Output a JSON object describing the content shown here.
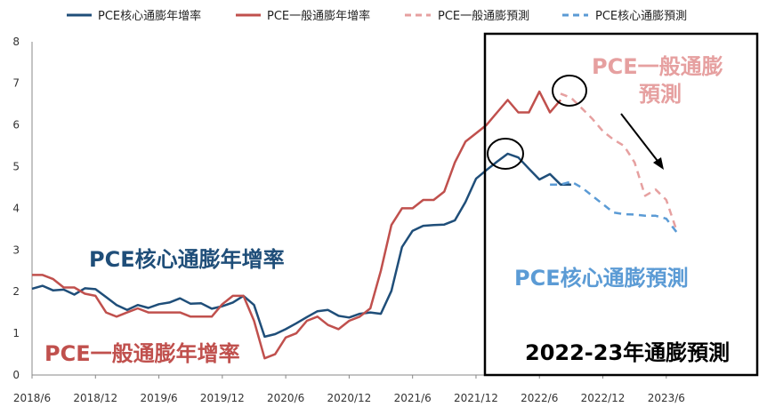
{
  "chart_data": {
    "type": "line",
    "ylim": [
      0,
      8
    ],
    "yticks": [
      "0",
      "1",
      "2",
      "3",
      "4",
      "5",
      "6",
      "7",
      "8"
    ],
    "xticks": [
      "2018/6",
      "2018/12",
      "2019/6",
      "2019/12",
      "2020/6",
      "2020/12",
      "2021/6",
      "2021/12",
      "2022/6",
      "2022/12",
      "2023/6"
    ],
    "legend_position": "top",
    "grid": false,
    "x_start": "2018/6",
    "series": [
      {
        "name": "PCE核心通膨年增率",
        "color": "#1f4e79",
        "style": "solid",
        "start": "2018/6",
        "values": [
          2.07,
          2.14,
          2.03,
          2.05,
          1.93,
          2.08,
          2.06,
          1.87,
          1.68,
          1.56,
          1.68,
          1.61,
          1.7,
          1.74,
          1.84,
          1.71,
          1.72,
          1.59,
          1.65,
          1.74,
          1.9,
          1.68,
          0.92,
          0.98,
          1.1,
          1.24,
          1.39,
          1.53,
          1.56,
          1.42,
          1.38,
          1.47,
          1.5,
          1.47,
          2.02,
          3.07,
          3.46,
          3.58,
          3.6,
          3.61,
          3.71,
          4.15,
          4.71,
          4.92,
          5.12,
          5.31,
          5.22,
          4.95,
          4.69,
          4.82,
          4.57,
          4.57
        ]
      },
      {
        "name": "PCE一般通膨年增率",
        "color": "#c0504d",
        "style": "solid",
        "start": "2018/6",
        "values": [
          2.4,
          2.4,
          2.3,
          2.1,
          2.1,
          1.95,
          1.9,
          1.5,
          1.4,
          1.5,
          1.6,
          1.5,
          1.5,
          1.5,
          1.5,
          1.4,
          1.4,
          1.4,
          1.7,
          1.9,
          1.9,
          1.3,
          0.4,
          0.5,
          0.9,
          1.0,
          1.3,
          1.4,
          1.2,
          1.1,
          1.3,
          1.4,
          1.6,
          2.5,
          3.6,
          4.0,
          4.0,
          4.2,
          4.2,
          4.4,
          5.1,
          5.6,
          5.8,
          6.0,
          6.3,
          6.6,
          6.3,
          6.3,
          6.8,
          6.3,
          6.6
        ]
      },
      {
        "name": "PCE一般通膨預測",
        "color": "#e6a0a0",
        "style": "dashed",
        "start": "2022/8",
        "values": [
          6.75,
          6.65,
          6.4,
          6.15,
          5.85,
          5.65,
          5.5,
          5.1,
          4.3,
          4.45,
          4.2,
          3.45
        ]
      },
      {
        "name": "PCE核心通膨預測",
        "color": "#5b9bd5",
        "style": "dashed",
        "start": "2022/7",
        "values": [
          4.57,
          4.57,
          4.64,
          4.5,
          4.3,
          4.1,
          3.9,
          3.86,
          3.85,
          3.82,
          3.82,
          3.75,
          3.42
        ]
      }
    ],
    "annotations": {
      "core_actual": "PCE核心通膨年增率",
      "headline_actual": "PCE一般通膨年增率",
      "headline_forecast_line1": "PCE一般通膨",
      "headline_forecast_line2": "預測",
      "core_forecast": "PCE核心通膨預測",
      "box_title": "2022-23年通膨預測"
    }
  }
}
